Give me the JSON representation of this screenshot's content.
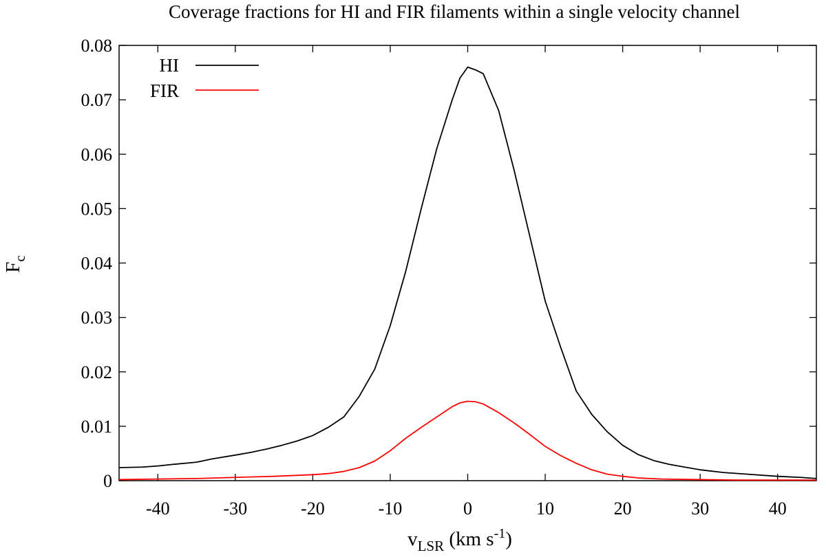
{
  "chart_data": {
    "type": "line",
    "title": "Coverage fractions for HI and FIR filaments within a single velocity channel",
    "xlabel": {
      "main": "v",
      "sub": "LSR",
      "unit_pre": " (km s",
      "sup": "-1",
      "unit_post": ")"
    },
    "ylabel": {
      "main": "F",
      "sub": "c"
    },
    "xlim": [
      -45,
      45
    ],
    "ylim": [
      0,
      0.08
    ],
    "xticks": [
      -40,
      -30,
      -20,
      -10,
      0,
      10,
      20,
      30,
      40
    ],
    "xtick_labels": [
      "-40",
      "-30",
      "-20",
      "-10",
      "0",
      "10",
      "20",
      "30",
      "40"
    ],
    "yticks": [
      0,
      0.01,
      0.02,
      0.03,
      0.04,
      0.05,
      0.06,
      0.07,
      0.08
    ],
    "ytick_labels": [
      "0",
      "0.01",
      "0.02",
      "0.03",
      "0.04",
      "0.05",
      "0.06",
      "0.07",
      "0.08"
    ],
    "grid": false,
    "legend_position": "top-left",
    "series": [
      {
        "name": "HI",
        "color": "#000000",
        "x": [
          -45,
          -42,
          -40,
          -38,
          -35,
          -33,
          -30,
          -28,
          -26,
          -24,
          -22,
          -20,
          -18,
          -16,
          -14,
          -12,
          -10,
          -8,
          -6,
          -4,
          -2,
          -1,
          0,
          1,
          2,
          4,
          6,
          8,
          10,
          12,
          14,
          16,
          18,
          20,
          22,
          24,
          26,
          28,
          30,
          33,
          36,
          40,
          43,
          45
        ],
        "y": [
          0.0024,
          0.0025,
          0.0027,
          0.003,
          0.0034,
          0.004,
          0.0047,
          0.0052,
          0.0058,
          0.0065,
          0.0073,
          0.0083,
          0.0098,
          0.0117,
          0.0155,
          0.0205,
          0.0285,
          0.0385,
          0.05,
          0.061,
          0.07,
          0.074,
          0.076,
          0.0755,
          0.0748,
          0.068,
          0.057,
          0.045,
          0.033,
          0.0245,
          0.0165,
          0.0122,
          0.009,
          0.0065,
          0.0048,
          0.0037,
          0.003,
          0.0025,
          0.002,
          0.0015,
          0.0012,
          0.0008,
          0.0006,
          0.0004
        ]
      },
      {
        "name": "FIR",
        "color": "#ff0000",
        "x": [
          -45,
          -40,
          -35,
          -30,
          -25,
          -20,
          -18,
          -16,
          -14,
          -12,
          -10,
          -8,
          -6,
          -4,
          -2,
          -1,
          0,
          1,
          2,
          4,
          6,
          8,
          10,
          12,
          14,
          16,
          18,
          20,
          22,
          25,
          30,
          35,
          40,
          45
        ],
        "y": [
          0.0002,
          0.0003,
          0.0004,
          0.0006,
          0.0008,
          0.0011,
          0.0013,
          0.0017,
          0.0024,
          0.0036,
          0.0055,
          0.0078,
          0.0098,
          0.0117,
          0.0136,
          0.0143,
          0.0146,
          0.0145,
          0.0141,
          0.0125,
          0.0106,
          0.0085,
          0.0063,
          0.0046,
          0.0032,
          0.002,
          0.0012,
          0.0008,
          0.0005,
          0.0003,
          0.0002,
          0.0001,
          0.0001,
          0.0001
        ]
      }
    ]
  }
}
